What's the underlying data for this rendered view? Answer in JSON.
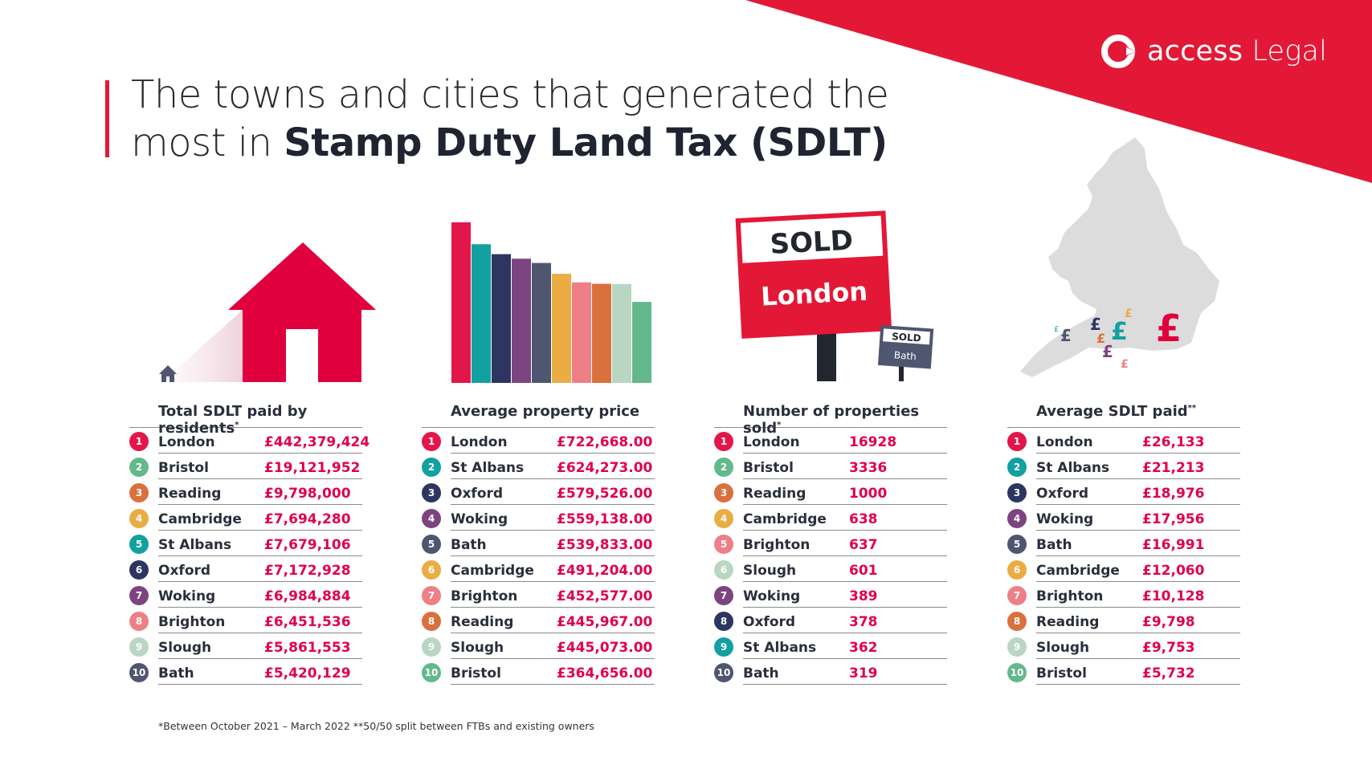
{
  "header": {
    "title_line1": "The towns and cities that generated the",
    "title_line2_prefix": "most in ",
    "title_line2_bold": "Stamp Duty Land Tax (SDLT)"
  },
  "logo": {
    "brand": "access",
    "product": "Legal"
  },
  "colors": {
    "brand_red": "#e31837",
    "value_pink": "#e0004b",
    "navy": "#2b3458",
    "rank_colors": [
      "#e3164a",
      "#63b88c",
      "#d9703d",
      "#e9ad43",
      "#13a0a0",
      "#2d3560",
      "#7c4480",
      "#ef7f86",
      "#b9d6c2",
      "#4e5670"
    ]
  },
  "illustrations": {
    "sold_sign_big_top": "SOLD",
    "sold_sign_big_city": "London",
    "sold_sign_small_top": "SOLD",
    "sold_sign_small_city": "Bath",
    "map_symbol": "£"
  },
  "columns": [
    {
      "title": "Total SDLT paid by residents",
      "title_mark": "*",
      "rows": [
        {
          "rank": "1",
          "name": "London",
          "value": "£442,379,424",
          "color": "#e3164a"
        },
        {
          "rank": "2",
          "name": "Bristol",
          "value": "£19,121,952",
          "color": "#63b88c"
        },
        {
          "rank": "3",
          "name": "Reading",
          "value": "£9,798,000",
          "color": "#d9703d"
        },
        {
          "rank": "4",
          "name": "Cambridge",
          "value": "£7,694,280",
          "color": "#e9ad43"
        },
        {
          "rank": "5",
          "name": "St Albans",
          "value": "£7,679,106",
          "color": "#13a0a0"
        },
        {
          "rank": "6",
          "name": "Oxford",
          "value": "£7,172,928",
          "color": "#2d3560"
        },
        {
          "rank": "7",
          "name": "Woking",
          "value": "£6,984,884",
          "color": "#7c4480"
        },
        {
          "rank": "8",
          "name": "Brighton",
          "value": "£6,451,536",
          "color": "#ef7f86"
        },
        {
          "rank": "9",
          "name": "Slough",
          "value": "£5,861,553",
          "color": "#b9d6c2"
        },
        {
          "rank": "10",
          "name": "Bath",
          "value": "£5,420,129",
          "color": "#4e5670"
        }
      ]
    },
    {
      "title": "Average property price",
      "title_mark": "",
      "rows": [
        {
          "rank": "1",
          "name": "London",
          "value": "£722,668.00",
          "color": "#e3164a"
        },
        {
          "rank": "2",
          "name": "St Albans",
          "value": "£624,273.00",
          "color": "#13a0a0"
        },
        {
          "rank": "3",
          "name": "Oxford",
          "value": "£579,526.00",
          "color": "#2d3560"
        },
        {
          "rank": "4",
          "name": "Woking",
          "value": "£559,138.00",
          "color": "#7c4480"
        },
        {
          "rank": "5",
          "name": "Bath",
          "value": "£539,833.00",
          "color": "#4e5670"
        },
        {
          "rank": "6",
          "name": "Cambridge",
          "value": "£491,204.00",
          "color": "#e9ad43"
        },
        {
          "rank": "7",
          "name": "Brighton",
          "value": "£452,577.00",
          "color": "#ef7f86"
        },
        {
          "rank": "8",
          "name": "Reading",
          "value": "£445,967.00",
          "color": "#d9703d"
        },
        {
          "rank": "9",
          "name": "Slough",
          "value": "£445,073.00",
          "color": "#b9d6c2"
        },
        {
          "rank": "10",
          "name": "Bristol",
          "value": "£364,656.00",
          "color": "#63b88c"
        }
      ]
    },
    {
      "title": "Number of properties sold",
      "title_mark": "*",
      "rows": [
        {
          "rank": "1",
          "name": "London",
          "value": "16928",
          "color": "#e3164a"
        },
        {
          "rank": "2",
          "name": "Bristol",
          "value": "3336",
          "color": "#63b88c"
        },
        {
          "rank": "3",
          "name": "Reading",
          "value": "1000",
          "color": "#d9703d"
        },
        {
          "rank": "4",
          "name": "Cambridge",
          "value": "638",
          "color": "#e9ad43"
        },
        {
          "rank": "5",
          "name": "Brighton",
          "value": "637",
          "color": "#ef7f86"
        },
        {
          "rank": "6",
          "name": "Slough",
          "value": "601",
          "color": "#b9d6c2"
        },
        {
          "rank": "7",
          "name": "Woking",
          "value": "389",
          "color": "#7c4480"
        },
        {
          "rank": "8",
          "name": "Oxford",
          "value": "378",
          "color": "#2d3560"
        },
        {
          "rank": "9",
          "name": "St Albans",
          "value": "362",
          "color": "#13a0a0"
        },
        {
          "rank": "10",
          "name": "Bath",
          "value": "319",
          "color": "#4e5670"
        }
      ]
    },
    {
      "title": "Average SDLT paid",
      "title_mark": "**",
      "rows": [
        {
          "rank": "1",
          "name": "London",
          "value": "£26,133",
          "color": "#e3164a"
        },
        {
          "rank": "2",
          "name": "St Albans",
          "value": "£21,213",
          "color": "#13a0a0"
        },
        {
          "rank": "3",
          "name": "Oxford",
          "value": "£18,976",
          "color": "#2d3560"
        },
        {
          "rank": "4",
          "name": "Woking",
          "value": "£17,956",
          "color": "#7c4480"
        },
        {
          "rank": "5",
          "name": "Bath",
          "value": "£16,991",
          "color": "#4e5670"
        },
        {
          "rank": "6",
          "name": "Cambridge",
          "value": "£12,060",
          "color": "#e9ad43"
        },
        {
          "rank": "7",
          "name": "Brighton",
          "value": "£10,128",
          "color": "#ef7f86"
        },
        {
          "rank": "8",
          "name": "Reading",
          "value": "£9,798",
          "color": "#d9703d"
        },
        {
          "rank": "9",
          "name": "Slough",
          "value": "£9,753",
          "color": "#b9d6c2"
        },
        {
          "rank": "10",
          "name": "Bristol",
          "value": "£5,732",
          "color": "#63b88c"
        }
      ]
    }
  ],
  "footnote": "*Between October 2021 – March 2022   **50/50 split between FTBs and existing owners"
}
